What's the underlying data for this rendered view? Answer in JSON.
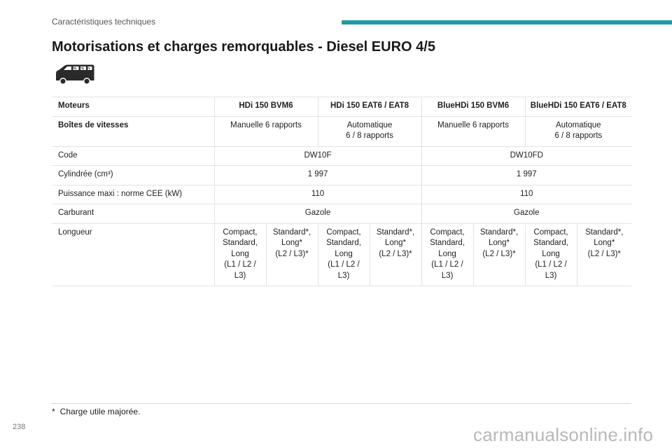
{
  "header": {
    "section": "Caractéristiques techniques",
    "accent_color": "#1f9aa7"
  },
  "title": "Motorisations et charges remorquables - Diesel EURO 4/5",
  "vehicle_icon": "van-icon",
  "table": {
    "headers": [
      "Moteurs",
      "HDi 150 BVM6",
      "HDi 150 EAT6 / EAT8",
      "BlueHDi 150 BVM6",
      "BlueHDi 150 EAT6 / EAT8"
    ],
    "gearbox": {
      "label": "Boîtes de vitesses",
      "values": [
        [
          "Manuelle 6 rapports"
        ],
        [
          "Automatique",
          "6 / 8 rapports"
        ],
        [
          "Manuelle 6 rapports"
        ],
        [
          "Automatique",
          "6 / 8 rapports"
        ]
      ]
    },
    "code": {
      "label": "Code",
      "values": [
        "DW10F",
        "DW10FD"
      ]
    },
    "displacement": {
      "label": "Cylindrée (cm³)",
      "values": [
        "1 997",
        "1 997"
      ]
    },
    "power": {
      "label": "Puissance maxi : norme CEE (kW)",
      "values": [
        "110",
        "110"
      ]
    },
    "fuel": {
      "label": "Carburant",
      "values": [
        "Gazole",
        "Gazole"
      ]
    },
    "length": {
      "label": "Longueur",
      "values": [
        [
          "Compact,",
          "Standard,",
          "Long",
          "(L1 / L2 /",
          "L3)"
        ],
        [
          "Standard*,",
          "Long*",
          "(L2 / L3)*"
        ],
        [
          "Compact,",
          "Standard,",
          "Long",
          "(L1 / L2 /",
          "L3)"
        ],
        [
          "Standard*,",
          "Long*",
          "(L2 / L3)*"
        ],
        [
          "Compact,",
          "Standard,",
          "Long",
          "(L1 / L2 /",
          "L3)"
        ],
        [
          "Standard*,",
          "Long*",
          "(L2 / L3)*"
        ],
        [
          "Compact,",
          "Standard,",
          "Long",
          "(L1 / L2 /",
          "L3)"
        ],
        [
          "Standard*,",
          "Long*",
          "(L2 / L3)*"
        ]
      ]
    }
  },
  "footnote": {
    "mark": "*",
    "text": "Charge utile majorée."
  },
  "page_number": "238",
  "watermark": "carmanualsonline.info"
}
